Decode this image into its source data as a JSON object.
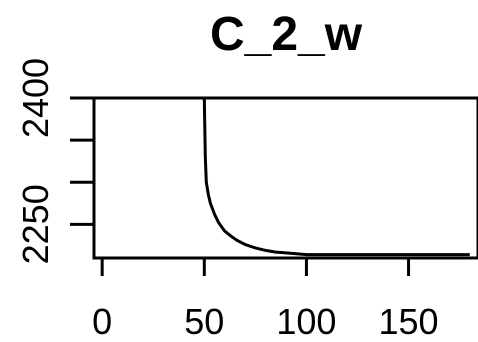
{
  "chart_data": {
    "type": "line",
    "title": "C_2_w",
    "xlabel": "",
    "ylabel": "",
    "xlim": [
      -4,
      184
    ],
    "ylim": [
      2210,
      2400
    ],
    "x_ticks": [
      0,
      50,
      100,
      150
    ],
    "x_tick_labels": [
      "0",
      "50",
      "100",
      "150"
    ],
    "y_ticks": [
      2250,
      2300,
      2350,
      2400
    ],
    "y_tick_labels": [
      "2250",
      "",
      "",
      "2400"
    ],
    "grid": false,
    "series": [
      {
        "x": [
          0,
          50,
          50.5,
          51,
          52,
          53,
          55,
          57,
          60,
          63,
          66,
          70,
          75,
          80,
          85,
          90,
          95,
          100,
          110,
          120,
          130,
          140,
          150,
          160,
          170,
          180
        ],
        "y": [
          2400,
          2400,
          2330,
          2300,
          2285,
          2275,
          2262,
          2252,
          2242,
          2236,
          2231,
          2226,
          2222,
          2219,
          2217,
          2216,
          2215,
          2214,
          2214,
          2214,
          2214,
          2214,
          2214,
          2214,
          2214,
          2214
        ],
        "color": "#000000"
      }
    ]
  }
}
